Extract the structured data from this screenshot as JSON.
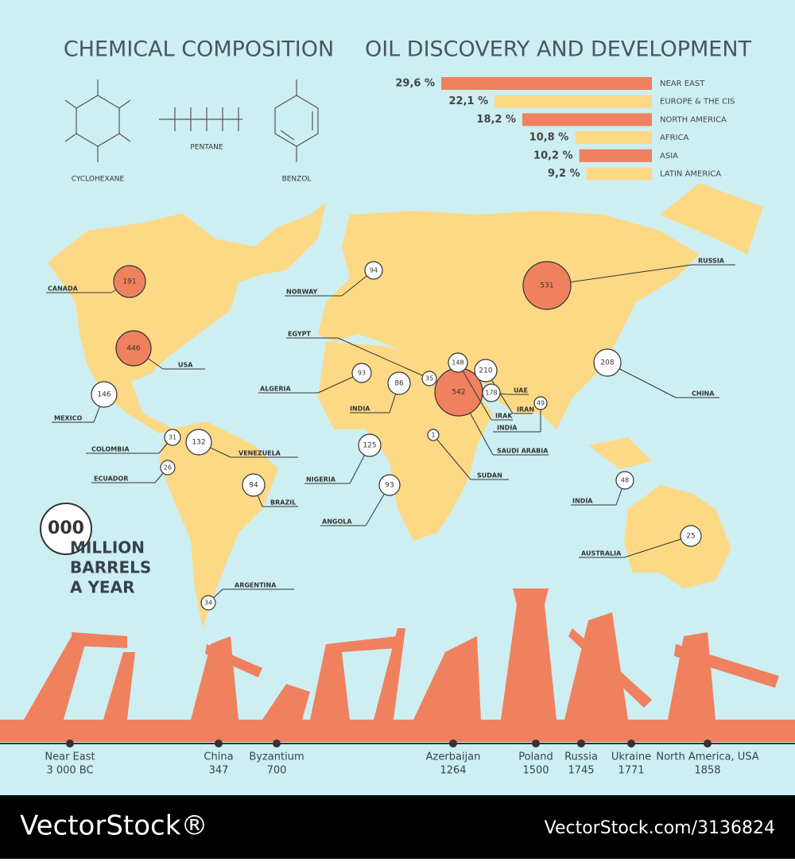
{
  "chemical": {
    "title": "CHEMICAL COMPOSITION",
    "molecules": [
      "CYCLOHEXANE",
      "PENTANE",
      "BENZOL"
    ]
  },
  "chart_data": {
    "type": "bar",
    "orientation": "horizontal",
    "title": "OIL DISCOVERY AND DEVELOPMENT",
    "categories": [
      "NEAR EAST",
      "EUROPE & THE CIS",
      "NORTH AMERICA",
      "AFRICA",
      "ASIA",
      "LATIN AMERICA"
    ],
    "values": [
      29.6,
      22.1,
      18.2,
      10.8,
      10.2,
      9.2
    ],
    "value_labels": [
      "29,6 %",
      "22,1 %",
      "18,2 %",
      "10,8 %",
      "10,2 %",
      "9,2 %"
    ],
    "colors": [
      "#f0815f",
      "#fdd985",
      "#f0815f",
      "#fdd985",
      "#f0815f",
      "#fdd985"
    ]
  },
  "map": {
    "points": [
      {
        "label": "CANADA",
        "value": 191,
        "color": "#f0815f"
      },
      {
        "label": "USA",
        "value": 446,
        "color": "#f0815f"
      },
      {
        "label": "MEXICO",
        "value": 146,
        "color": "#ffffff"
      },
      {
        "label": "COLOMBIA",
        "value": 31,
        "color": "#ffffff"
      },
      {
        "label": "VENEZUELA",
        "value": 132,
        "color": "#ffffff"
      },
      {
        "label": "ECUADOR",
        "value": 26,
        "color": "#ffffff"
      },
      {
        "label": "BRAZIL",
        "value": 94,
        "color": "#ffffff"
      },
      {
        "label": "ARGENTINA",
        "value": 34,
        "color": "#ffffff"
      },
      {
        "label": "NORWAY",
        "value": 94,
        "color": "#ffffff"
      },
      {
        "label": "EGYPT",
        "value": 35,
        "color": "#ffffff"
      },
      {
        "label": "ALGERIA",
        "value": 93,
        "color": "#ffffff"
      },
      {
        "label": "INDIA",
        "value": 86,
        "color": "#ffffff"
      },
      {
        "label": "NIGERIA",
        "value": 125,
        "color": "#ffffff"
      },
      {
        "label": "ANGOLA",
        "value": 93,
        "color": "#ffffff"
      },
      {
        "label": "SUDAN",
        "value": 1,
        "color": "#ffffff"
      },
      {
        "label": "SAUDI ARABIA",
        "value": 542,
        "color": "#f0815f"
      },
      {
        "label": "IRAK",
        "value": 148,
        "color": "#ffffff"
      },
      {
        "label": "IRAN",
        "value": 210,
        "color": "#ffffff"
      },
      {
        "label": "UAE",
        "value": 178,
        "color": "#ffffff"
      },
      {
        "label": "INDIA",
        "value": 49,
        "color": "#ffffff"
      },
      {
        "label": "RUSSIA",
        "value": 531,
        "color": "#f0815f"
      },
      {
        "label": "CHINA",
        "value": 208,
        "color": "#ffffff"
      },
      {
        "label": "INDIA",
        "value": 48,
        "color": "#ffffff"
      },
      {
        "label": "AUSTRALIA",
        "value": 25,
        "color": "#ffffff"
      }
    ],
    "legend": {
      "sample": "000",
      "lines": [
        "MILLION",
        "BARRELS",
        "A YEAR"
      ]
    }
  },
  "timeline": [
    {
      "place": "Near East",
      "year": "3 000 BC"
    },
    {
      "place": "China",
      "year": "347"
    },
    {
      "place": "Byzantium",
      "year": "700"
    },
    {
      "place": "Azerbaijan",
      "year": "1264"
    },
    {
      "place": "Poland",
      "year": "1500"
    },
    {
      "place": "Russia",
      "year": "1745"
    },
    {
      "place": "Ukraine",
      "year": "1771"
    },
    {
      "place": "North America, USA",
      "year": "1858"
    }
  ],
  "watermark": {
    "brand": "VectorStock®",
    "id": "VectorStock.com/3136824"
  }
}
